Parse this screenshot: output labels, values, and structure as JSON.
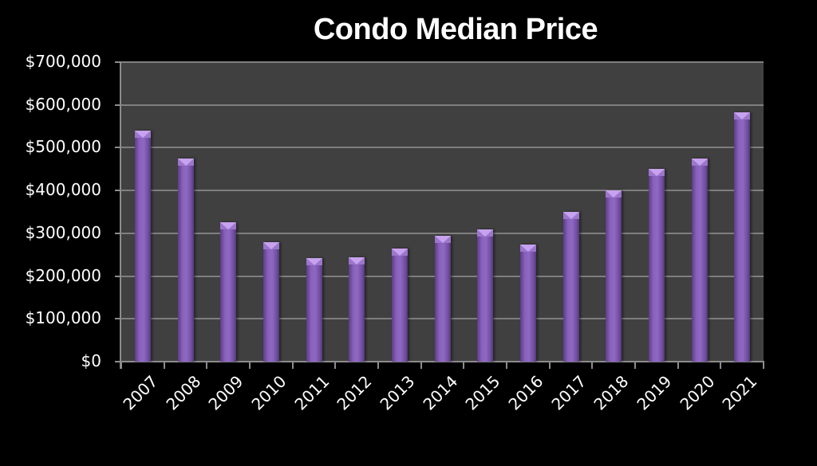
{
  "chart_data": {
    "type": "bar",
    "title": "Condo Median Price",
    "xlabel": "",
    "ylabel": "",
    "categories": [
      "2007",
      "2008",
      "2009",
      "2010",
      "2011",
      "2012",
      "2013",
      "2014",
      "2015",
      "2016",
      "2017",
      "2018",
      "2019",
      "2020",
      "2021"
    ],
    "series": [
      {
        "name": "Condo Median Price",
        "values": [
          540000,
          475000,
          325000,
          280000,
          242000,
          244000,
          264000,
          294000,
          309000,
          274000,
          350000,
          400000,
          450000,
          474000,
          582000
        ]
      }
    ],
    "ylim": [
      0,
      700000
    ],
    "yticks": [
      "$0",
      "$100,000",
      "$200,000",
      "$300,000",
      "$400,000",
      "$500,000",
      "$600,000",
      "$700,000"
    ],
    "grid": true,
    "legend": "none",
    "colors": {
      "bar": "#7f5aad",
      "bar_highlight": "#c7a2ef",
      "plot_bg": "#404040",
      "page_bg": "#000000",
      "grid": "#7f7f7f",
      "text": "#ffffff"
    }
  }
}
